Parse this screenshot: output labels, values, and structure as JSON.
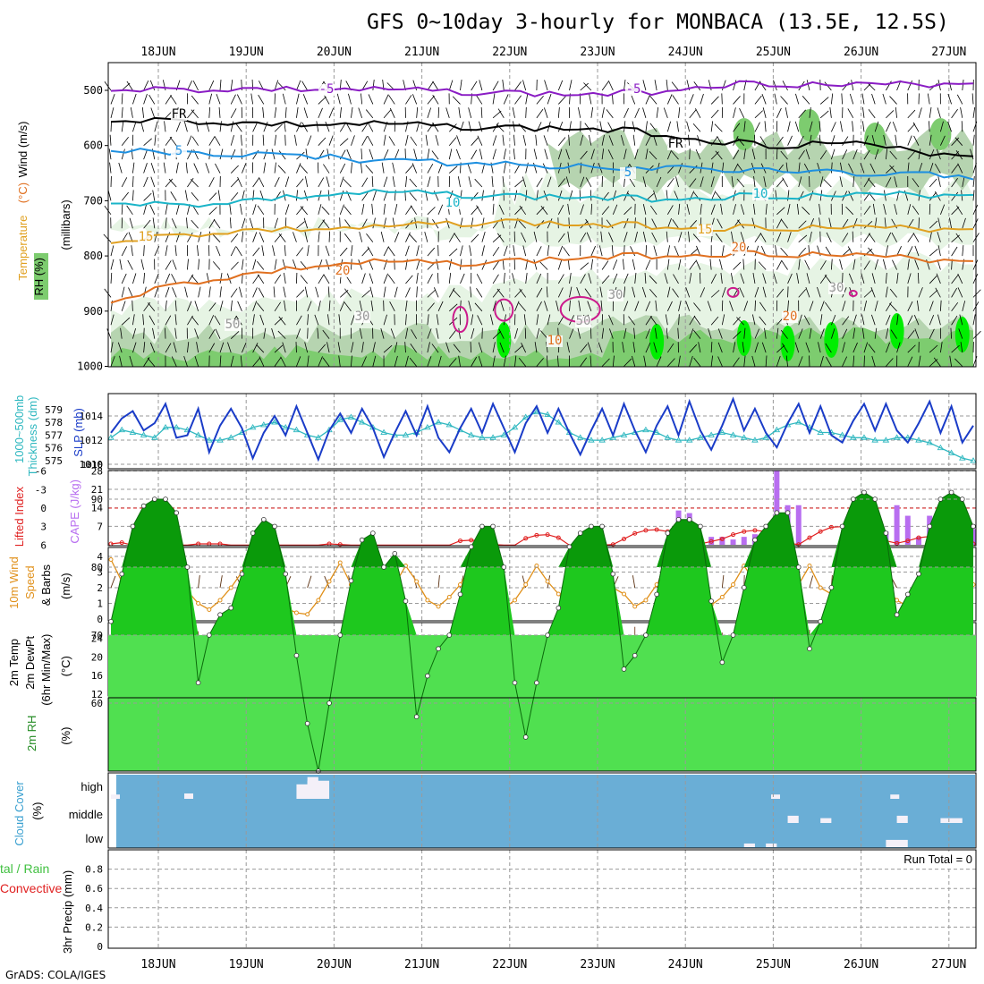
{
  "title": "GFS 0~10day 3-hourly for MONBACA (13.5E, 12.5S)",
  "credit": "GrADS: COLA/IGES",
  "dates": [
    "18JUN",
    "19JUN",
    "20JUN",
    "21JUN",
    "22JUN",
    "23JUN",
    "24JUN",
    "25JUN",
    "26JUN",
    "27JUN"
  ],
  "colors": {
    "rh_light": "#e6f4e4",
    "rh_mid": "#b6d4b0",
    "rh_dark": "#7dcc6f",
    "rh_bright": "#00ee00",
    "temp_purple": "#8a1cc4",
    "temp_freeze": "#000000",
    "temp_blue": "#1e90e0",
    "temp_cyan": "#1ab4c8",
    "temp_yellow": "#e0a020",
    "temp_orange": "#e07020",
    "slp": "#1a3cc8",
    "thickness": "#30b8c0",
    "cape": "#b86ef0",
    "lifted": "#e02020",
    "wind": "#e0901a",
    "temp2m": "#f4f47c",
    "dew": "#4ce64c",
    "cloud": "#6aaed6",
    "precip_total": "#40c040",
    "precip_conv": "#e02020"
  },
  "chart_data": [
    {
      "type": "contour",
      "panel": "upper-air",
      "ylabel": "(millibars)",
      "legend": [
        "Wind (m/s)",
        "Temperature (°C)",
        "RH (%)"
      ],
      "yticks": [
        500,
        600,
        700,
        800,
        900,
        1000
      ],
      "contour_labels": [
        "-5",
        "FR",
        "5",
        "10",
        "15",
        "20",
        "10",
        "30",
        "50"
      ],
      "isotherms": [
        {
          "label": "-5",
          "pressure": [
            496,
            500,
            498,
            499,
            500,
            502,
            505,
            508,
            505,
            490,
            487,
            492,
            490,
            486
          ]
        },
        {
          "label": "FR",
          "pressure": [
            552,
            556,
            560,
            563,
            562,
            565,
            568,
            570,
            575,
            590,
            600,
            595,
            610,
            618
          ]
        },
        {
          "label": "5",
          "pressure": [
            608,
            612,
            615,
            620,
            626,
            630,
            635,
            638,
            640,
            642,
            646,
            648,
            652,
            655
          ]
        },
        {
          "label": "10",
          "pressure": [
            700,
            710,
            700,
            692,
            686,
            688,
            692,
            694,
            697,
            693,
            690,
            692,
            690,
            688
          ]
        },
        {
          "label": "15",
          "pressure": [
            772,
            764,
            754,
            752,
            750,
            742,
            738,
            744,
            745,
            749,
            748,
            750,
            751,
            750
          ]
        },
        {
          "label": "20",
          "pressure": [
            880,
            852,
            835,
            820,
            812,
            814,
            810,
            805,
            800,
            796,
            795,
            800,
            805,
            808
          ]
        }
      ]
    },
    {
      "type": "line",
      "panel": "slp-thickness",
      "ylabel": "SLP (mb)",
      "ylabel2": "1000~500mb Thickness (dm)",
      "yticks_left": [
        1010,
        1012,
        1014
      ],
      "yticks_right": [
        575,
        576,
        577,
        578,
        579
      ],
      "series": [
        {
          "name": "SLP",
          "axis": "left",
          "values": [
            1012.6,
            1013.8,
            1014.4,
            1012.8,
            1013.4,
            1015.0,
            1012.2,
            1012.4,
            1014.6,
            1011.0,
            1013.2,
            1014.6,
            1013.0,
            1010.5,
            1012.6,
            1014.0,
            1012.4,
            1014.8,
            1012.6,
            1010.4,
            1012.8,
            1014.2,
            1012.6,
            1014.6,
            1013.0,
            1010.6,
            1012.6,
            1014.4,
            1012.4,
            1014.8,
            1012.2,
            1011.0,
            1013.0,
            1014.6,
            1012.6,
            1015.0,
            1013.0,
            1011.0,
            1013.4,
            1014.8,
            1012.6,
            1014.6,
            1012.6,
            1010.8,
            1012.8,
            1014.6,
            1012.4,
            1015.0,
            1012.8,
            1011.0,
            1013.2,
            1014.8,
            1012.4,
            1015.2,
            1012.8,
            1011.2,
            1013.2,
            1015.4,
            1012.8,
            1014.6,
            1012.6,
            1011.4,
            1013.4,
            1015.0,
            1012.6,
            1014.8,
            1012.4,
            1011.8,
            1013.6,
            1015.0,
            1012.8,
            1015.0,
            1012.8,
            1011.8,
            1013.4,
            1015.2,
            1012.6,
            1014.8,
            1011.8,
            1013.2
          ]
        },
        {
          "name": "Thickness",
          "axis": "right",
          "values": [
            576.8,
            577.4,
            577.2,
            577.0,
            576.8,
            577.6,
            577.6,
            577.4,
            577.0,
            576.6,
            576.6,
            576.8,
            577.2,
            577.6,
            577.8,
            578.0,
            577.6,
            577.4,
            577.0,
            576.8,
            577.4,
            578.2,
            578.4,
            578.0,
            577.6,
            577.2,
            577.0,
            577.0,
            577.2,
            577.6,
            578.0,
            577.8,
            577.4,
            577.0,
            576.8,
            576.8,
            577.0,
            577.6,
            578.4,
            578.8,
            578.6,
            578.0,
            577.2,
            576.8,
            576.6,
            576.6,
            576.8,
            577.0,
            577.2,
            577.4,
            577.2,
            576.8,
            576.6,
            576.6,
            576.8,
            577.0,
            577.2,
            577.0,
            576.8,
            576.6,
            576.8,
            577.4,
            577.8,
            578.0,
            577.6,
            577.2,
            577.2,
            577.0,
            576.8,
            576.8,
            576.6,
            576.6,
            576.8,
            576.8,
            576.6,
            576.4,
            576.0,
            575.6,
            575.2,
            575.0
          ]
        }
      ]
    },
    {
      "type": "bar",
      "panel": "cape-li",
      "ylabel": "CAPE (J/kg)",
      "ylabel2": "Lifted Index",
      "yticks_cape": [
        7,
        14,
        21,
        28
      ],
      "yticks_li": [
        -6,
        -3,
        0,
        3,
        6
      ],
      "cape_values": [
        0,
        0,
        0,
        0,
        0,
        0,
        0,
        0,
        0,
        0,
        0,
        0,
        0,
        0,
        0,
        0,
        0,
        0,
        0,
        0,
        0,
        0,
        0,
        0,
        0,
        0,
        0,
        0,
        0,
        0,
        0,
        0,
        0,
        0,
        0,
        0,
        0,
        0,
        0,
        0,
        0,
        0,
        0,
        0,
        0,
        0,
        0,
        0,
        0,
        0,
        0,
        2,
        13,
        12,
        2,
        3,
        3,
        2,
        3,
        4,
        5,
        28,
        15,
        15,
        0,
        0,
        0,
        0,
        0,
        0,
        0,
        5,
        15,
        11,
        3,
        11,
        8,
        3,
        0,
        6
      ],
      "li_values": [
        5.8,
        5.6,
        6.0,
        5.9,
        5.9,
        6.0,
        6.0,
        6.0,
        5.8,
        5.8,
        5.8,
        6.0,
        6.0,
        6.0,
        6.0,
        6.0,
        6.0,
        6.0,
        6.0,
        6.0,
        5.8,
        5.9,
        6.0,
        6.0,
        6.0,
        6.0,
        6.0,
        6.0,
        6.0,
        6.0,
        6.0,
        6.0,
        5.3,
        5.2,
        5.3,
        5.9,
        6.0,
        6.0,
        4.9,
        4.4,
        4.3,
        4.8,
        6.0,
        6.0,
        6.0,
        6.0,
        5.9,
        5.0,
        4.1,
        3.6,
        3.5,
        3.8,
        4.6,
        5.6,
        5.8,
        5.4,
        5.0,
        4.3,
        3.8,
        3.6,
        3.8,
        4.5,
        5.7,
        5.9,
        4.8,
        3.8,
        3.1,
        3.0,
        3.0,
        3.3,
        4.4,
        5.3,
        5.7,
        5.3,
        4.8,
        4.6,
        4.6,
        4.8,
        5.8,
        5.8
      ]
    },
    {
      "type": "line",
      "panel": "wind10m",
      "ylabel": "10m Wind Speed & Barbs (m/s)",
      "yticks": [
        0,
        1,
        2,
        3,
        4
      ],
      "values": [
        3.8,
        2.4,
        1.4,
        0.6,
        2.0,
        2.5,
        3.0,
        1.8,
        1.0,
        0.6,
        1.2,
        2.0,
        3.0,
        2.4,
        1.4,
        0.9,
        0.7,
        0.4,
        0.3,
        1.2,
        2.4,
        3.6,
        2.2,
        1.8,
        1.0,
        1.4,
        2.2,
        3.4,
        2.4,
        1.2,
        0.8,
        1.4,
        2.2,
        3.4,
        2.0,
        1.2,
        0.7,
        1.2,
        2.2,
        3.4,
        2.4,
        1.6,
        0.8,
        1.2,
        2.2,
        3.4,
        2.0,
        1.6,
        0.8,
        1.2,
        2.2,
        3.0,
        4.3,
        2.8,
        1.2,
        0.9,
        1.4,
        2.2,
        3.4,
        2.4,
        1.2,
        0.8,
        1.4,
        2.2,
        3.4,
        2.0,
        1.6,
        0.8,
        1.2,
        2.2,
        3.4,
        2.0,
        1.2,
        0.8,
        1.6,
        2.4,
        3.0,
        2.0,
        1.6,
        2.2
      ]
    },
    {
      "type": "area",
      "panel": "temp2m",
      "ylabel": "2m Temp 2m DewPt (6hr Min/Max) (°C)",
      "yticks": [
        12,
        16,
        20,
        24
      ],
      "series": [
        {
          "name": "2m Temp",
          "values": [
            23.5,
            23.4,
            21.2,
            20.0,
            19.5,
            19.0,
            19.5,
            22.0,
            23.7,
            23.7,
            21.0,
            20.0,
            19.3,
            19.0,
            20.0,
            22.5,
            23.8,
            23.8,
            21.0,
            20.0,
            19.6,
            19.3,
            20.5,
            23.2,
            24.0,
            23.8,
            21.0,
            20.0,
            19.7,
            19.4,
            20.5,
            23.0,
            23.8,
            23.7,
            21.2,
            20.3,
            20.0,
            19.8,
            20.8,
            23.0,
            23.7,
            23.5,
            21.0,
            20.1,
            19.8,
            19.7,
            20.2,
            22.0,
            23.7,
            23.6,
            21.8,
            20.8,
            20.4,
            20.2,
            20.6,
            22.0,
            22.6,
            22.5,
            21.2,
            20.6,
            20.4,
            20.3,
            20.7,
            22.6,
            23.7,
            23.6,
            21.4,
            20.5,
            20.2,
            20.0,
            20.4,
            22.0,
            23.6,
            23.5,
            21.5,
            20.9,
            20.8,
            20.9,
            20.8,
            20.7
          ]
        },
        {
          "name": "2m DewPt",
          "values": [
            17.5,
            17.8,
            18.3,
            18.2,
            17.6,
            17.3,
            16.8,
            16.6,
            16.8,
            17.0,
            16.2,
            15.0,
            14.5,
            14.0,
            14.5,
            15.0,
            15.8,
            16.0,
            16.2,
            16.6,
            16.8,
            16.3,
            16.8,
            17.3,
            17.6,
            17.6,
            17.4,
            17.2,
            17.6,
            17.8,
            18.0,
            17.6,
            17.2,
            17.6,
            18.0,
            18.2,
            18.4,
            18.5,
            18.2,
            18.0,
            18.0,
            18.2,
            18.3,
            18.4,
            18.2,
            18.0,
            18.2,
            18.4,
            18.5,
            18.6,
            18.6,
            18.3,
            18.5,
            18.6,
            18.7,
            18.8,
            18.8,
            18.6,
            18.5,
            18.4,
            18.6,
            18.8,
            18.9,
            19.0,
            18.8,
            18.6,
            18.6,
            18.6,
            18.8,
            18.9,
            18.8,
            18.7,
            18.6,
            18.6,
            18.6,
            18.4,
            18.4,
            18.5,
            18.6,
            18.6
          ]
        }
      ]
    },
    {
      "type": "area",
      "panel": "rh2m",
      "ylabel": "2m RH (%)",
      "yticks": [
        60,
        70,
        80,
        90
      ],
      "values": [
        72,
        79,
        86,
        89,
        90,
        90,
        88,
        80,
        63,
        70,
        73,
        74,
        79,
        85,
        87,
        86,
        79,
        67,
        57,
        50,
        60,
        70,
        78,
        84,
        85,
        80,
        82,
        75,
        58,
        64,
        68,
        70,
        76,
        83,
        86,
        86,
        80,
        63,
        55,
        63,
        70,
        74,
        83,
        85,
        86,
        86,
        79,
        65,
        67,
        70,
        76,
        85,
        87,
        87,
        86,
        75,
        66,
        70,
        77,
        84,
        86,
        88,
        88,
        80,
        68,
        72,
        77,
        86,
        90,
        91,
        90,
        85,
        73,
        76,
        79,
        86,
        90,
        91,
        90,
        86
      ]
    },
    {
      "type": "heatmap",
      "panel": "cloud",
      "ylabel": "Cloud Cover (%)",
      "ytick_labels": [
        "high",
        "middle",
        "low"
      ],
      "clear_high_segments": [
        [
          17,
          19,
          60
        ],
        [
          18,
          19,
          90
        ],
        [
          18,
          20,
          75
        ]
      ],
      "clear_middle_segments": [
        [
          62,
          63,
          30
        ],
        [
          65,
          66,
          20
        ],
        [
          72,
          73,
          30
        ],
        [
          76,
          78,
          20
        ],
        [
          82,
          83,
          20
        ],
        [
          85,
          86,
          30
        ],
        [
          94,
          95,
          60
        ]
      ],
      "clear_low_segments": [
        [
          58,
          59,
          15
        ],
        [
          60,
          61,
          15
        ],
        [
          71,
          73,
          30
        ],
        [
          82,
          83,
          15
        ],
        [
          85,
          87,
          25
        ],
        [
          88,
          89,
          30
        ]
      ]
    },
    {
      "type": "bar",
      "panel": "precip",
      "ylabel": "3hr Precip (mm)",
      "ylabel2": "Total / Rain Convective",
      "yticks": [
        0,
        0.2,
        0.4,
        0.6,
        0.8
      ],
      "run_total_label": "Run Total = 0",
      "values": []
    }
  ]
}
